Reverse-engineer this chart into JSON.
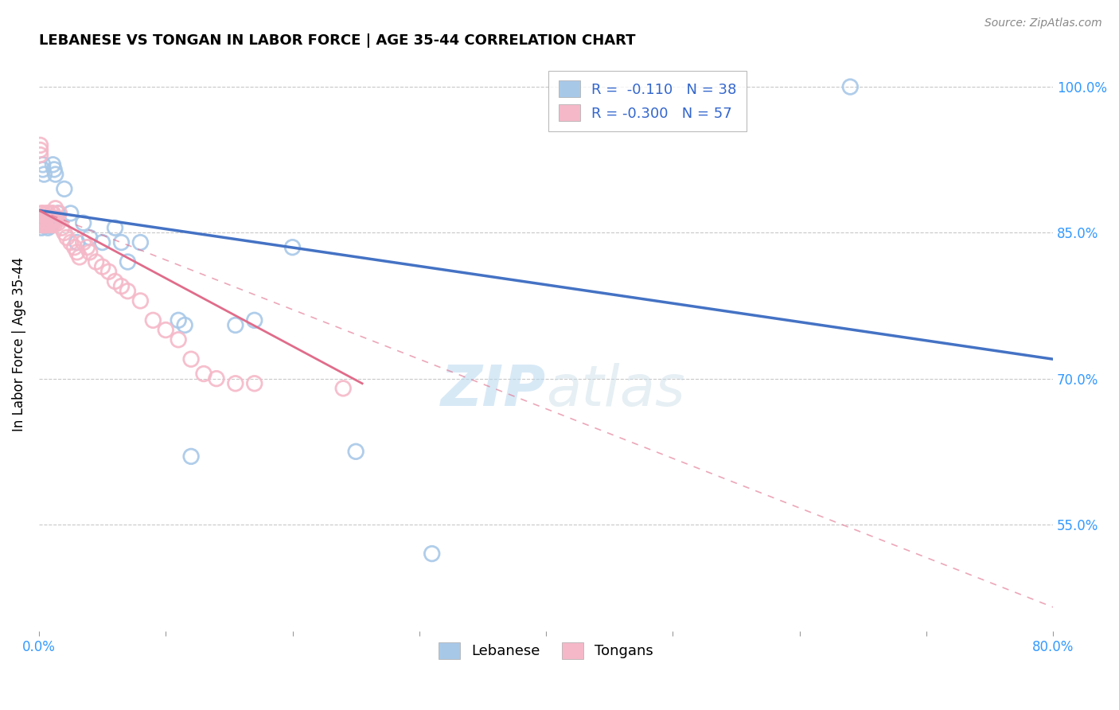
{
  "title": "LEBANESE VS TONGAN IN LABOR FORCE | AGE 35-44 CORRELATION CHART",
  "source": "Source: ZipAtlas.com",
  "ylabel": "In Labor Force | Age 35-44",
  "xlim": [
    0.0,
    0.8
  ],
  "ylim": [
    0.44,
    1.03
  ],
  "xtick_positions": [
    0.0,
    0.1,
    0.2,
    0.3,
    0.4,
    0.5,
    0.6,
    0.7,
    0.8
  ],
  "xticklabels": [
    "0.0%",
    "",
    "",
    "",
    "",
    "",
    "",
    "",
    "80.0%"
  ],
  "ytick_positions": [
    0.55,
    0.7,
    0.85,
    1.0
  ],
  "ytick_labels": [
    "55.0%",
    "70.0%",
    "85.0%",
    "100.0%"
  ],
  "blue_color": "#a8c8e8",
  "pink_color": "#f5b8c8",
  "blue_line_color": "#4472C4",
  "pink_line_color": "#E06C8A",
  "grid_color": "#c8c8c8",
  "watermark": "ZIPatlas",
  "legend_blue_label": "R =  -0.110   N = 38",
  "legend_pink_label": "R = -0.300   N = 57",
  "blue_scatter_x": [
    0.001,
    0.001,
    0.002,
    0.002,
    0.003,
    0.003,
    0.004,
    0.005,
    0.005,
    0.006,
    0.006,
    0.007,
    0.008,
    0.009,
    0.01,
    0.011,
    0.012,
    0.013,
    0.015,
    0.02,
    0.025,
    0.03,
    0.035,
    0.04,
    0.05,
    0.06,
    0.065,
    0.07,
    0.08,
    0.11,
    0.115,
    0.12,
    0.155,
    0.17,
    0.2,
    0.25,
    0.31,
    0.64
  ],
  "blue_scatter_y": [
    0.862,
    0.858,
    0.86,
    0.855,
    0.92,
    0.915,
    0.91,
    0.862,
    0.86,
    0.858,
    0.862,
    0.855,
    0.86,
    0.857,
    0.86,
    0.92,
    0.915,
    0.91,
    0.87,
    0.895,
    0.87,
    0.84,
    0.86,
    0.845,
    0.84,
    0.855,
    0.84,
    0.82,
    0.84,
    0.76,
    0.755,
    0.62,
    0.755,
    0.76,
    0.835,
    0.625,
    0.52,
    1.0
  ],
  "pink_scatter_x": [
    0.001,
    0.001,
    0.001,
    0.002,
    0.002,
    0.002,
    0.003,
    0.003,
    0.004,
    0.004,
    0.005,
    0.005,
    0.005,
    0.006,
    0.006,
    0.007,
    0.007,
    0.008,
    0.008,
    0.009,
    0.01,
    0.01,
    0.01,
    0.011,
    0.011,
    0.012,
    0.012,
    0.013,
    0.014,
    0.015,
    0.016,
    0.018,
    0.02,
    0.022,
    0.025,
    0.028,
    0.03,
    0.032,
    0.035,
    0.038,
    0.04,
    0.045,
    0.05,
    0.055,
    0.06,
    0.065,
    0.07,
    0.08,
    0.09,
    0.1,
    0.11,
    0.12,
    0.13,
    0.14,
    0.155,
    0.17,
    0.24
  ],
  "pink_scatter_y": [
    0.94,
    0.935,
    0.93,
    0.87,
    0.865,
    0.858,
    0.87,
    0.86,
    0.862,
    0.858,
    0.868,
    0.862,
    0.858,
    0.87,
    0.865,
    0.87,
    0.858,
    0.86,
    0.862,
    0.86,
    0.87,
    0.865,
    0.858,
    0.862,
    0.87,
    0.865,
    0.858,
    0.875,
    0.865,
    0.86,
    0.87,
    0.855,
    0.85,
    0.845,
    0.84,
    0.835,
    0.83,
    0.825,
    0.84,
    0.835,
    0.83,
    0.82,
    0.815,
    0.81,
    0.8,
    0.795,
    0.79,
    0.78,
    0.76,
    0.75,
    0.74,
    0.72,
    0.705,
    0.7,
    0.695,
    0.695,
    0.69
  ],
  "blue_line_x": [
    0.0,
    0.8
  ],
  "blue_line_y": [
    0.873,
    0.72
  ],
  "pink_solid_line_x": [
    0.0,
    0.255
  ],
  "pink_solid_line_y": [
    0.873,
    0.695
  ],
  "pink_dash_line_x": [
    0.0,
    0.8
  ],
  "pink_dash_line_y": [
    0.873,
    0.465
  ]
}
